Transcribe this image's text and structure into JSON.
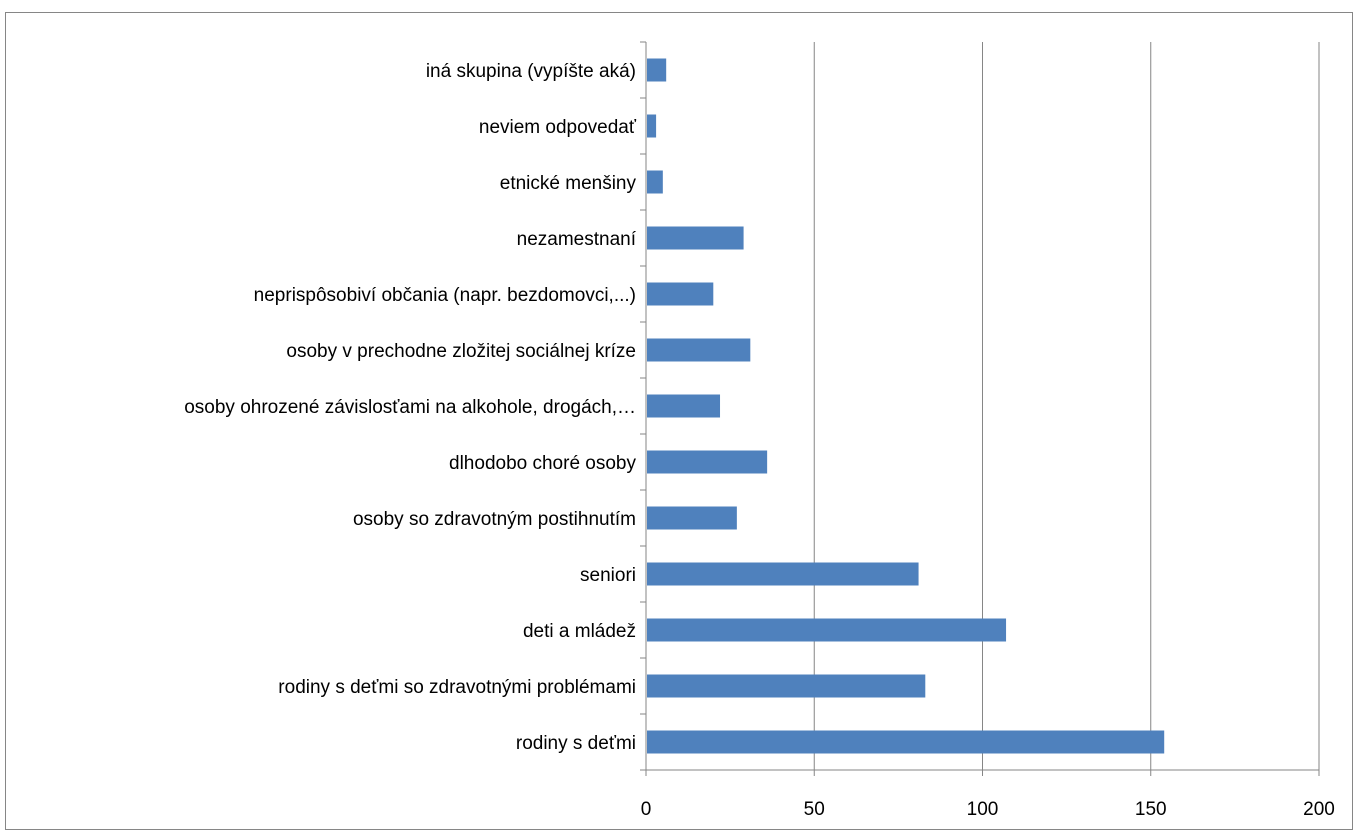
{
  "chart_data": {
    "type": "bar",
    "orientation": "horizontal",
    "categories": [
      "rodiny s deťmi",
      "rodiny s deťmi so zdravotnými problémami",
      "deti a mládež",
      "seniori",
      "osoby so zdravotným postihnutím",
      "dlhodobo choré osoby",
      "osoby ohrozené závislosťami na alkohole, drogách,…",
      "osoby v prechodne zložitej sociálnej kríze",
      "neprispôsobiví občania (napr. bezdomovci,...)",
      "nezamestnaní",
      "etnické menšiny",
      "neviem odpovedať",
      "iná skupina (vypíšte aká)"
    ],
    "values": [
      154,
      83,
      107,
      81,
      27,
      36,
      22,
      31,
      20,
      29,
      5,
      3,
      6
    ],
    "xlim": [
      0,
      200
    ],
    "ticks": [
      "0",
      "50",
      "100",
      "150",
      "200"
    ],
    "grid": true,
    "legend": "none",
    "colors": {
      "bar": "#4f81bd",
      "gridline": "#868686",
      "axis": "#868686",
      "frame": "#868686"
    }
  }
}
